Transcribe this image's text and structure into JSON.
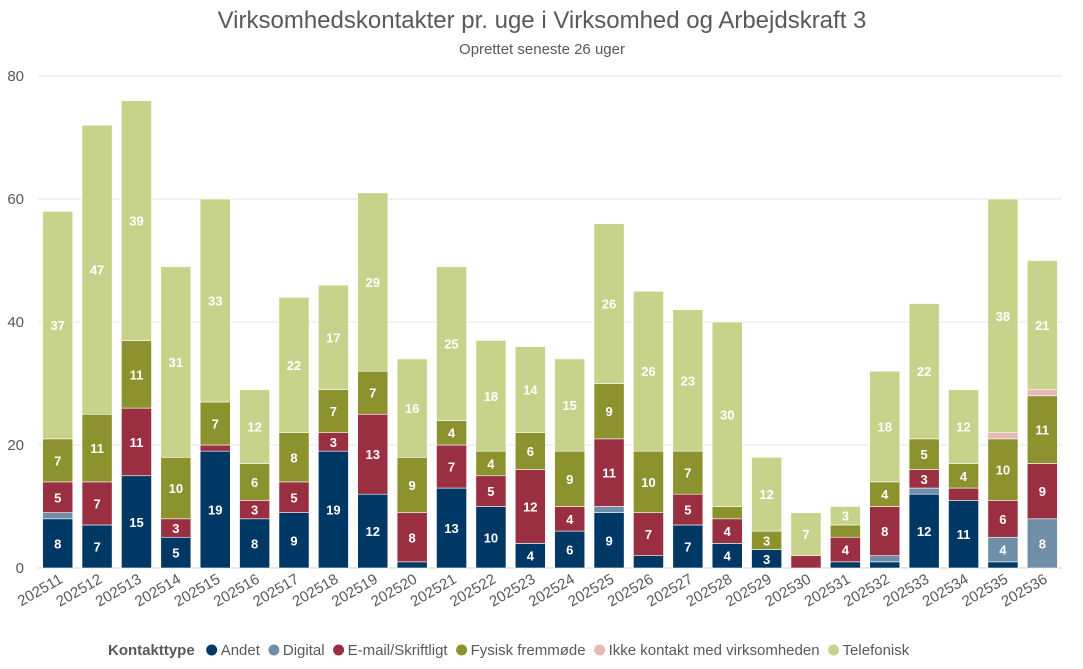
{
  "chart_data": {
    "type": "bar",
    "stacked": true,
    "title": "Virksomhedskontakter pr. uge i Virksomhed og Arbejdskraft 3",
    "subtitle": "Oprettet seneste 26 uger",
    "ylim": [
      0,
      80
    ],
    "yticks": [
      0,
      20,
      40,
      60,
      80
    ],
    "grid": true,
    "legend_position": "bottom",
    "legend_title": "Kontakttype",
    "categories": [
      "202511",
      "202512",
      "202513",
      "202514",
      "202515",
      "202516",
      "202517",
      "202518",
      "202519",
      "202520",
      "202521",
      "202522",
      "202523",
      "202524",
      "202525",
      "202526",
      "202527",
      "202528",
      "202529",
      "202530",
      "202531",
      "202532",
      "202533",
      "202534",
      "202535",
      "202536"
    ],
    "series": [
      {
        "name": "Andet",
        "color": "#003865",
        "values": [
          8,
          7,
          15,
          5,
          19,
          8,
          9,
          19,
          12,
          1,
          13,
          10,
          4,
          6,
          9,
          2,
          7,
          4,
          3,
          0,
          1,
          1,
          12,
          11,
          1,
          0
        ],
        "labels": [
          "8",
          "7",
          "15",
          "5",
          "19",
          "8",
          "9",
          "19",
          "12",
          "",
          "13",
          "10",
          "4",
          "6",
          "9",
          "",
          "7",
          "4",
          "3",
          "",
          "",
          "",
          "12",
          "11",
          "",
          ""
        ]
      },
      {
        "name": "Digital",
        "color": "#6f8fa8",
        "values": [
          1,
          0,
          0,
          0,
          0,
          0,
          0,
          0,
          0,
          0,
          0,
          0,
          0,
          0,
          1,
          0,
          0,
          0,
          0,
          0,
          0,
          1,
          1,
          0,
          4,
          8
        ],
        "labels": [
          "",
          "",
          "",
          "",
          "",
          "",
          "",
          "",
          "",
          "",
          "",
          "",
          "",
          "",
          "",
          "",
          "",
          "",
          "",
          "",
          "",
          "",
          "",
          "",
          "4",
          "8"
        ]
      },
      {
        "name": "E-mail/Skriftligt",
        "color": "#9b2f42",
        "values": [
          5,
          7,
          11,
          3,
          1,
          3,
          5,
          3,
          13,
          8,
          7,
          5,
          12,
          4,
          11,
          7,
          5,
          4,
          0,
          2,
          4,
          8,
          3,
          2,
          6,
          9
        ],
        "labels": [
          "5",
          "7",
          "11",
          "3",
          "",
          "3",
          "5",
          "3",
          "13",
          "8",
          "7",
          "5",
          "12",
          "4",
          "11",
          "7",
          "5",
          "4",
          "",
          "",
          "4",
          "8",
          "3",
          "",
          "6",
          "9"
        ]
      },
      {
        "name": "Fysisk fremmøde",
        "color": "#8c922e",
        "values": [
          7,
          11,
          11,
          10,
          7,
          6,
          8,
          7,
          7,
          9,
          4,
          4,
          6,
          9,
          9,
          10,
          7,
          2,
          3,
          0,
          2,
          4,
          5,
          4,
          10,
          11
        ],
        "labels": [
          "7",
          "11",
          "11",
          "10",
          "7",
          "6",
          "8",
          "7",
          "7",
          "9",
          "4",
          "4",
          "6",
          "9",
          "9",
          "10",
          "7",
          "",
          "3",
          "",
          "",
          "4",
          "5",
          "4",
          "10",
          "11"
        ]
      },
      {
        "name": "Ikke kontakt med virksomheden",
        "color": "#e8b8b8",
        "values": [
          0,
          0,
          0,
          0,
          0,
          0,
          0,
          0,
          0,
          0,
          0,
          0,
          0,
          0,
          0,
          0,
          0,
          0,
          0,
          0,
          0,
          0,
          0,
          0,
          1,
          1
        ],
        "labels": [
          "",
          "",
          "",
          "",
          "",
          "",
          "",
          "",
          "",
          "",
          "",
          "",
          "",
          "",
          "",
          "",
          "",
          "",
          "",
          "",
          "",
          "",
          "",
          "",
          "",
          ""
        ]
      },
      {
        "name": "Telefonisk",
        "color": "#c7d28a",
        "values": [
          37,
          47,
          39,
          31,
          33,
          12,
          22,
          17,
          29,
          16,
          25,
          18,
          14,
          15,
          26,
          26,
          23,
          30,
          12,
          7,
          3,
          18,
          22,
          12,
          38,
          21
        ],
        "labels": [
          "37",
          "47",
          "39",
          "31",
          "33",
          "12",
          "22",
          "17",
          "29",
          "16",
          "25",
          "18",
          "14",
          "15",
          "26",
          "26",
          "23",
          "30",
          "12",
          "7",
          "3",
          "18",
          "22",
          "12",
          "38",
          "21"
        ]
      }
    ]
  }
}
